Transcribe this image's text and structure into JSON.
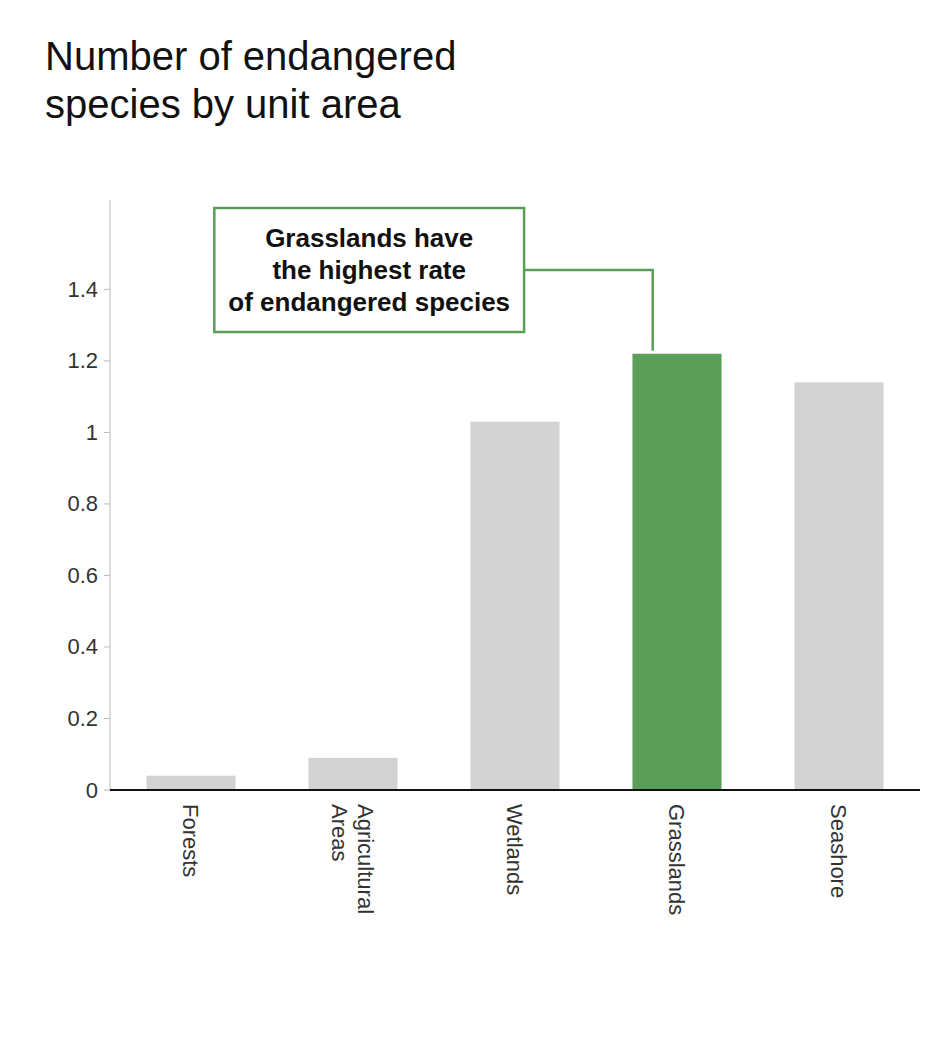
{
  "chart_data": {
    "type": "bar",
    "title": "Number of endangered\nspecies by unit area",
    "categories": [
      "Forests",
      "Agricultural\nAreas",
      "Wetlands",
      "Grasslands",
      "Seashore"
    ],
    "values": [
      0.04,
      0.09,
      1.03,
      1.22,
      1.14
    ],
    "colors": [
      "#d3d3d3",
      "#d3d3d3",
      "#d3d3d3",
      "#5a9e5a",
      "#d3d3d3"
    ],
    "ylim": [
      0,
      1.65
    ],
    "yticks": [
      0,
      0.2,
      0.4,
      0.6,
      0.8,
      1,
      1.2,
      1.4
    ],
    "grid": false,
    "annotations": [
      {
        "text": "Grasslands have\nthe highest rate\nof endangered species",
        "x": "Grasslands",
        "y": 1.22
      }
    ]
  }
}
